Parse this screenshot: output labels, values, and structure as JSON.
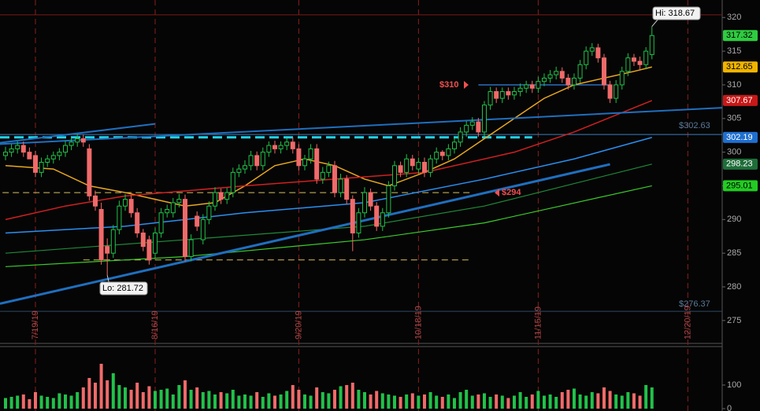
{
  "chart_data": {
    "type": "candlestick",
    "xlim": [
      -0.92,
      119.74
    ],
    "ylim": [
      271.6,
      322.6
    ],
    "yticks": [
      275,
      280,
      285,
      290,
      295,
      300,
      305,
      310,
      315,
      320
    ],
    "xticks": [
      {
        "value": 5,
        "label": "7/19/19"
      },
      {
        "value": 25,
        "label": "8/16/19"
      },
      {
        "value": 49,
        "label": "9/20/19"
      },
      {
        "value": 69,
        "label": "10/18/19"
      },
      {
        "value": 89,
        "label": "11/15/19"
      },
      {
        "value": 114,
        "label": "12/20/19"
      }
    ],
    "up_color": "#22c14a",
    "down_color": "#f06a6a",
    "open": [
      299.5,
      300,
      300.5,
      301,
      300,
      299.5,
      297,
      298.5,
      299,
      299.5,
      300,
      301,
      301.5,
      302,
      300.5,
      293.5,
      291.5,
      286,
      285,
      288.5,
      292,
      293,
      291,
      288,
      287,
      285,
      288,
      291,
      291,
      292.5,
      293,
      284.5,
      290.5,
      287,
      290,
      292,
      294,
      293,
      294,
      297,
      297.5,
      298,
      299.5,
      298,
      300,
      301,
      300.5,
      301,
      301.5,
      300.5,
      298,
      299,
      300.5,
      296,
      297,
      298,
      294,
      296,
      293,
      288,
      291,
      294,
      292,
      289,
      291,
      295,
      298,
      297,
      299,
      297.5,
      298.5,
      297,
      299,
      300,
      299.5,
      300.5,
      301.5,
      303,
      304,
      304.5,
      303,
      307,
      309,
      308,
      309,
      308.5,
      309,
      309.5,
      310,
      309.5,
      310.5,
      311,
      311.5,
      312,
      311,
      310,
      311,
      313,
      315,
      315.5,
      314,
      310,
      308,
      310,
      312,
      314,
      313.5,
      313,
      314.5
    ],
    "high": [
      300.8,
      301.2,
      301.6,
      301.6,
      300.7,
      300.2,
      299.2,
      299.6,
      300.1,
      300.6,
      301.7,
      302.2,
      302.7,
      302.6,
      301.2,
      294.3,
      292.5,
      287.2,
      289.2,
      292.8,
      293.8,
      293.6,
      291.7,
      288.6,
      287.6,
      288.8,
      291.7,
      292.2,
      293.2,
      293.8,
      293.7,
      287.8,
      291.2,
      290.8,
      292.7,
      294.8,
      294.6,
      294.7,
      297.7,
      298.2,
      298.8,
      300.2,
      300.1,
      300.7,
      301.6,
      301.7,
      301.6,
      302.1,
      302.2,
      301.2,
      299.6,
      301.2,
      301.2,
      297.8,
      298.6,
      298.7,
      296.8,
      296.6,
      293.6,
      291.7,
      294.8,
      294.6,
      292.6,
      291.7,
      295.7,
      298.7,
      298.6,
      299.7,
      299.6,
      299.2,
      299.2,
      299.6,
      300.7,
      300.3,
      301.2,
      302.2,
      303.7,
      304.6,
      305.2,
      305.1,
      307.6,
      309.7,
      309.6,
      309.6,
      309.6,
      309.7,
      310.2,
      310.6,
      310.6,
      311.2,
      311.7,
      312.2,
      312.7,
      312.6,
      311.6,
      311.7,
      313.7,
      315.7,
      316.2,
      316.1,
      314.6,
      310.6,
      310.7,
      312.7,
      314.7,
      314.6,
      314.2,
      315.6,
      318.67
    ],
    "low": [
      298.8,
      299.3,
      299.8,
      299.3,
      299.2,
      296.3,
      296.3,
      297.8,
      298.3,
      298.8,
      299.3,
      300.3,
      300.8,
      300.8,
      292.8,
      291.3,
      283.3,
      281.72,
      284.3,
      287.8,
      291.3,
      290.3,
      287.3,
      285.3,
      283.3,
      284.3,
      287.3,
      290.3,
      290.3,
      291.8,
      283.8,
      283.8,
      288.3,
      286.3,
      289.3,
      291.3,
      292.3,
      292.3,
      293.3,
      296.3,
      296.8,
      297.3,
      297.3,
      297.3,
      299.3,
      299.8,
      299.8,
      300.3,
      299.8,
      297.3,
      297.3,
      298.3,
      295.3,
      295.3,
      296.3,
      293.3,
      293.3,
      292.3,
      285.3,
      287.3,
      290.3,
      291.3,
      288.3,
      288.3,
      290.3,
      294.3,
      296.3,
      296.3,
      297.3,
      296.8,
      296.3,
      296.3,
      298.3,
      298.8,
      298.8,
      299.8,
      300.8,
      302.3,
      303.3,
      302.3,
      302.3,
      306.3,
      307.3,
      307.3,
      307.8,
      307.8,
      308.3,
      308.8,
      308.8,
      308.8,
      309.8,
      310.3,
      310.8,
      310.3,
      309.3,
      309.3,
      310.3,
      312.3,
      314.3,
      313.3,
      309.3,
      307.3,
      307.3,
      309.3,
      311.3,
      312.8,
      312.3,
      312.3,
      313.8
    ],
    "close": [
      300,
      300.5,
      301,
      300,
      299,
      297,
      298.5,
      299,
      299.5,
      300,
      301,
      301.5,
      302,
      301.5,
      293.5,
      292,
      284,
      285,
      288.5,
      292,
      293,
      291,
      288,
      286,
      284,
      288,
      291,
      291.5,
      292.5,
      293,
      284.5,
      287,
      289,
      290,
      292,
      294,
      293,
      294,
      297,
      297.5,
      298,
      299.5,
      298,
      300,
      301,
      300.5,
      301,
      301.5,
      300.5,
      298,
      299,
      300.5,
      296,
      297,
      298,
      294,
      296,
      293,
      288,
      291,
      294,
      292,
      289,
      291,
      295,
      298,
      297,
      299,
      298,
      298.5,
      297,
      299,
      300,
      299.5,
      300.5,
      301.5,
      303,
      304,
      304.5,
      303,
      307,
      309,
      308,
      309,
      308.5,
      309,
      309.5,
      310,
      309.5,
      310.5,
      311,
      311.5,
      312,
      311,
      310,
      311,
      313,
      315,
      315.5,
      314,
      310,
      308,
      310,
      312,
      314,
      313.5,
      313,
      315,
      317.32
    ],
    "volume": [
      45,
      50,
      55,
      60,
      40,
      70,
      55,
      50,
      45,
      65,
      60,
      55,
      70,
      90,
      130,
      110,
      190,
      120,
      150,
      100,
      90,
      80,
      110,
      70,
      95,
      75,
      80,
      85,
      60,
      100,
      120,
      80,
      90,
      70,
      75,
      60,
      70,
      65,
      80,
      55,
      60,
      55,
      70,
      50,
      65,
      55,
      60,
      75,
      100,
      80,
      60,
      55,
      90,
      70,
      65,
      80,
      95,
      100,
      110,
      80,
      70,
      60,
      75,
      65,
      60,
      55,
      50,
      60,
      65,
      55,
      60,
      70,
      55,
      50,
      60,
      45,
      70,
      80,
      55,
      60,
      65,
      50,
      60,
      55,
      45,
      55,
      70,
      50,
      60,
      75,
      55,
      60,
      50,
      70,
      80,
      85,
      60,
      55,
      70,
      65,
      90,
      75,
      60,
      55,
      70,
      65,
      55,
      100,
      90
    ],
    "volume_ylim": [
      0,
      263
    ],
    "volume_yticks": [
      0,
      100
    ],
    "lines": [
      {
        "x": [
          -0.92,
          119.74
        ],
        "values": [
          320.4,
          320.4
        ],
        "color": "#7a1a1a",
        "width": 1
      },
      {
        "x": [
          -0.92,
          119.74
        ],
        "values": [
          276.37,
          276.37
        ],
        "color": "#2c4a66",
        "width": 1
      },
      {
        "x": [
          -0.92,
          119.74
        ],
        "values": [
          302.63,
          302.63
        ],
        "color": "#3a7fc0",
        "width": 1
      },
      {
        "x": [
          -0.92,
          88
        ],
        "values": [
          302.2,
          302.2
        ],
        "color": "#22d3e6",
        "width": 3,
        "dash": "12 6"
      },
      {
        "x": [
          79,
          101
        ],
        "values": [
          310,
          310
        ],
        "color": "#2a6fbf",
        "width": 1.5
      },
      {
        "x": [
          -0.5,
          78
        ],
        "values": [
          294,
          294
        ],
        "color": "#d8c060",
        "width": 1,
        "dash": "8 5"
      },
      {
        "x": [
          13,
          78
        ],
        "values": [
          284,
          284
        ],
        "color": "#d8c060",
        "width": 1,
        "dash": "8 5"
      },
      {
        "x": [
          0,
          8,
          14,
          20,
          25,
          30,
          35,
          40,
          45,
          50,
          55,
          60,
          64,
          70,
          75,
          80,
          85,
          90,
          95,
          100,
          105,
          108
        ],
        "values": [
          298,
          297.5,
          295,
          294,
          293,
          292,
          292.5,
          295,
          298,
          299,
          298,
          296,
          295,
          297,
          299,
          302,
          305,
          308,
          310,
          311,
          312,
          312.65
        ],
        "color": "#e8a820",
        "width": 1.5
      },
      {
        "x": [
          0,
          10,
          20,
          40,
          55,
          70,
          85,
          95,
          108
        ],
        "values": [
          290,
          292,
          293.5,
          295,
          296,
          297,
          300,
          303,
          307.67
        ],
        "color": "#d02020",
        "width": 1.5
      },
      {
        "x": [
          0,
          20,
          40,
          60,
          80,
          95,
          108
        ],
        "values": [
          288,
          289,
          291,
          292.5,
          296,
          299,
          302.19
        ],
        "color": "#2a8ff0",
        "width": 1.5
      },
      {
        "x": [
          0,
          30,
          60,
          80,
          108
        ],
        "values": [
          285,
          287,
          289,
          292,
          298.23
        ],
        "color": "#1f8a3a",
        "width": 1.2
      },
      {
        "x": [
          0,
          30,
          60,
          80,
          108
        ],
        "values": [
          283,
          284.5,
          287,
          289.5,
          295.01
        ],
        "color": "#3ccc2a",
        "width": 1.2
      },
      {
        "x": [
          -0.92,
          101
        ],
        "values": [
          277.5,
          298.2
        ],
        "color": "#1f6fbf",
        "width": 3
      },
      {
        "x": [
          -0.92,
          119.74
        ],
        "values": [
          301.2,
          306.6
        ],
        "color": "#1f6fbf",
        "width": 2
      },
      {
        "x": [
          -0.92,
          25
        ],
        "values": [
          301.4,
          304.2
        ],
        "color": "#1f6fbf",
        "width": 2
      }
    ],
    "price_tags": [
      {
        "value": 317.32,
        "color": "#2ecc40",
        "text_color": "#000000"
      },
      {
        "value": 312.65,
        "color": "#f0b400",
        "text_color": "#000000"
      },
      {
        "value": 307.67,
        "color": "#c81818",
        "text_color": "#ffffff"
      },
      {
        "value": 302.19,
        "color": "#1e6fd0",
        "text_color": "#ffffff"
      },
      {
        "value": 298.23,
        "color": "#1f6e3a",
        "text_color": "#ffffff"
      },
      {
        "value": 295.01,
        "color": "#22cc22",
        "text_color": "#000000"
      }
    ],
    "annotations": [
      {
        "text": "Hi: 318.67",
        "value": 318.67
      },
      {
        "text": "Lo: 281.72",
        "value": 281.72
      },
      {
        "text": "$310",
        "value": 310
      },
      {
        "text": "$294",
        "value": 294
      },
      {
        "text": "$302.63",
        "value": 302.63
      },
      {
        "text": "$276.37",
        "value": 276.37
      }
    ]
  }
}
